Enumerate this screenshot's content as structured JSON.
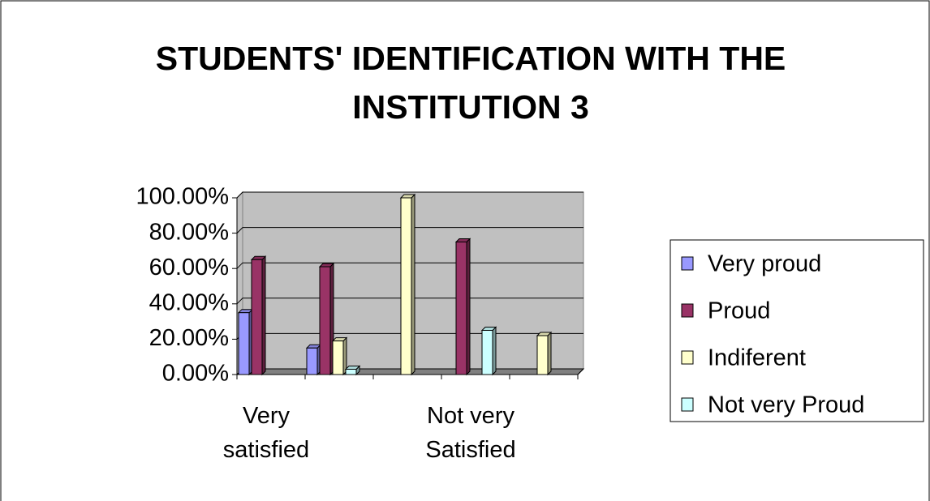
{
  "chart_data": {
    "type": "bar3d",
    "title": "STUDENTS'  IDENTIFICATION WITH THE INSTITUTION 3",
    "categories": [
      "Very satisfied",
      null,
      null,
      "Not very Satisfied",
      null
    ],
    "series": [
      {
        "name": "Very proud",
        "color": "#9999ff",
        "values": [
          35,
          15,
          null,
          null,
          null
        ]
      },
      {
        "name": "Proud",
        "color": "#993366",
        "values": [
          65,
          61,
          null,
          75,
          null
        ]
      },
      {
        "name": "Indiferent",
        "color": "#ffffcc",
        "values": [
          null,
          19,
          100,
          null,
          22
        ]
      },
      {
        "name": "Not very Proud",
        "color": "#ccffff",
        "values": [
          null,
          3,
          null,
          25,
          null
        ]
      }
    ],
    "ylim": [
      0,
      100
    ],
    "yticks": [
      {
        "value": 0,
        "label": "0.00%"
      },
      {
        "value": 20,
        "label": "20.00%"
      },
      {
        "value": 40,
        "label": "40.00%"
      },
      {
        "value": 60,
        "label": "60.00%"
      },
      {
        "value": 80,
        "label": "80.00%"
      },
      {
        "value": 100,
        "label": "100.00%"
      }
    ],
    "grid": true,
    "legend": "right"
  }
}
